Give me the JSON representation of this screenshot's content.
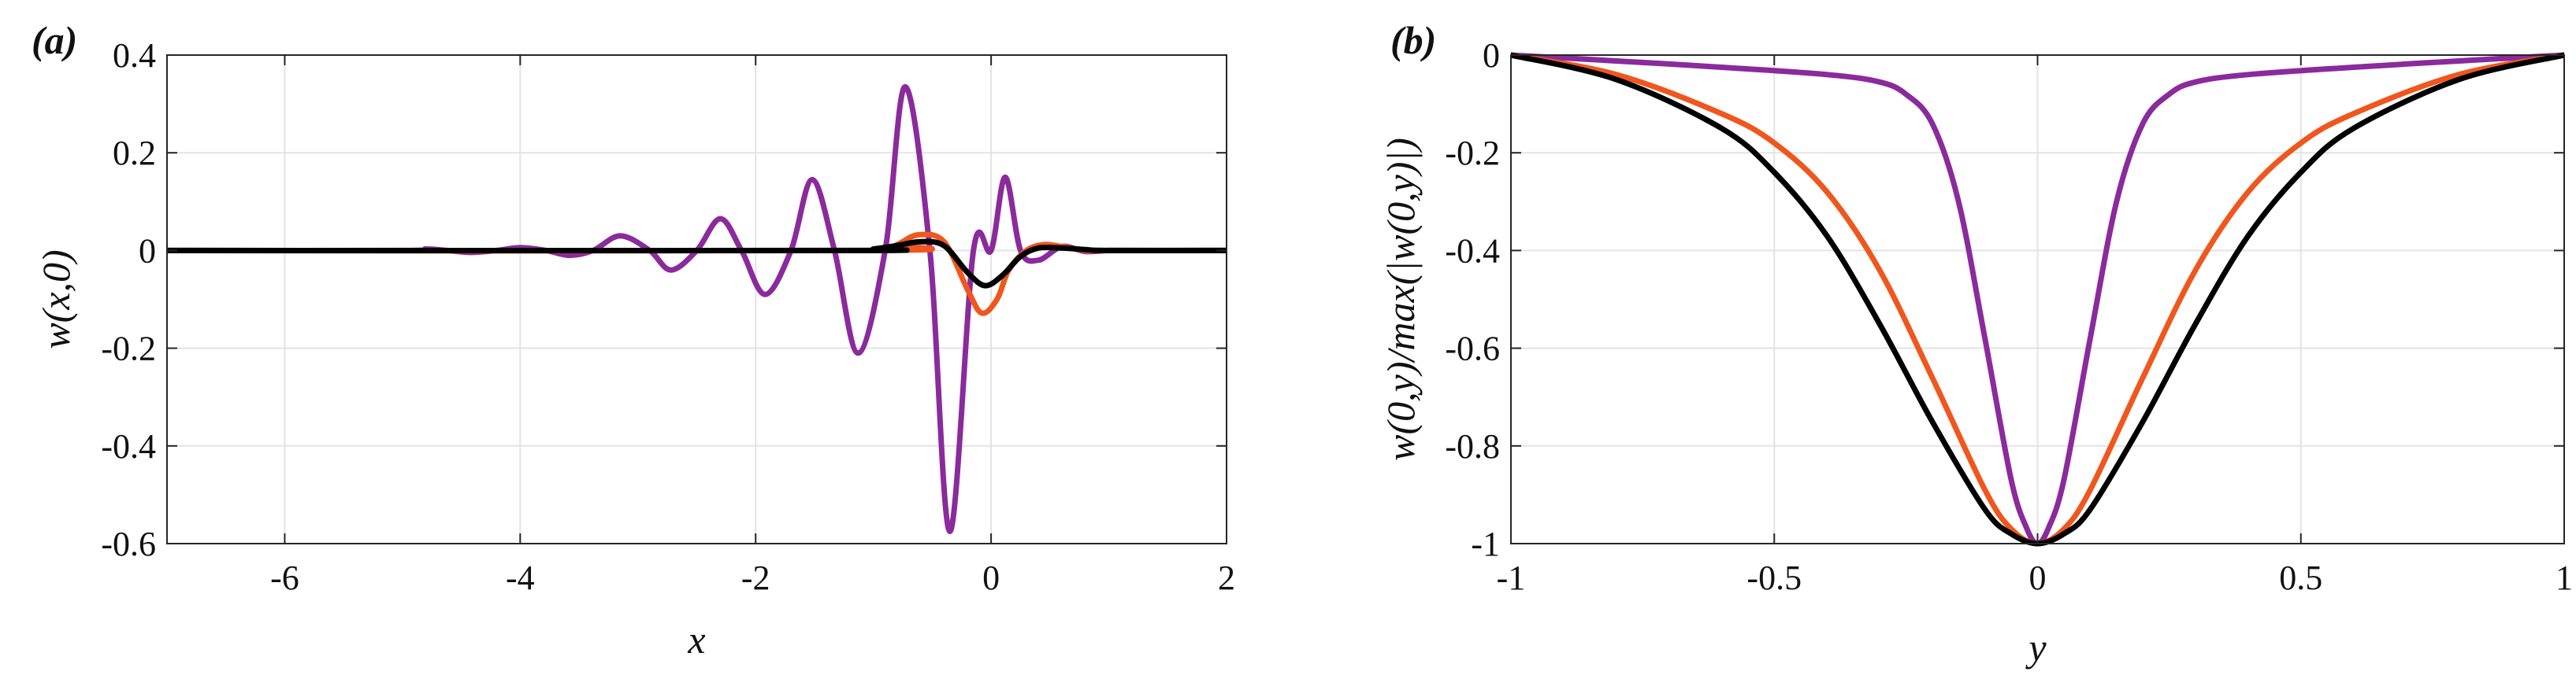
{
  "chart_data": [
    {
      "type": "line",
      "panel_label": "(a)",
      "xlabel": "x",
      "ylabel": "w(x,0)",
      "xlim": [
        -7,
        2
      ],
      "ylim": [
        -0.6,
        0.4
      ],
      "xticks": [
        -6,
        -4,
        -2,
        0,
        2
      ],
      "xtick_labels": [
        "-6",
        "-4",
        "-2",
        "0",
        "2"
      ],
      "yticks": [
        -0.6,
        -0.4,
        -0.2,
        0,
        0.2,
        0.4
      ],
      "ytick_labels": [
        "-0.6",
        "-0.4",
        "-0.2",
        "0",
        "0.2",
        "0.4"
      ],
      "grid": true,
      "series": [
        {
          "name": "purple",
          "color": "#8b2a9c",
          "x": [
            -7.0,
            -5.0,
            -4.8,
            -4.62,
            -4.42,
            -4.2,
            -4.0,
            -3.78,
            -3.58,
            -3.38,
            -3.15,
            -2.9,
            -2.72,
            -2.5,
            -2.3,
            -2.12,
            -1.92,
            -1.7,
            -1.52,
            -1.33,
            -1.13,
            -0.9,
            -0.73,
            -0.52,
            -0.35,
            -0.15,
            0.0,
            0.12,
            0.25,
            0.4,
            0.6,
            0.8,
            1.0,
            1.2,
            2.0
          ],
          "y": [
            0.0,
            0.0,
            0.003,
            0.0,
            -0.004,
            0.0,
            0.006,
            0.0,
            -0.01,
            0.0,
            0.03,
            0.0,
            -0.04,
            0.0,
            0.065,
            0.0,
            -0.09,
            0.0,
            0.145,
            0.0,
            -0.21,
            0.0,
            0.335,
            0.0,
            -0.575,
            0.0,
            0.0,
            0.15,
            0.0,
            -0.02,
            0.008,
            -0.002,
            0.0,
            0.0,
            0.0
          ]
        },
        {
          "name": "orange",
          "color": "#f0561d",
          "x": [
            -7.0,
            -1.0,
            -0.8,
            -0.62,
            -0.4,
            -0.2,
            -0.08,
            0.05,
            0.15,
            0.3,
            0.45,
            0.6,
            0.8,
            1.0,
            2.0
          ],
          "y": [
            0.0,
            0.0,
            0.012,
            0.032,
            0.018,
            -0.08,
            -0.128,
            -0.1,
            -0.04,
            0.0,
            0.012,
            0.008,
            0.0,
            0.0,
            0.0
          ]
        },
        {
          "name": "black",
          "color": "#000000",
          "x": [
            -7.0,
            -1.2,
            -1.0,
            -0.8,
            -0.6,
            -0.4,
            -0.2,
            -0.05,
            0.1,
            0.25,
            0.4,
            0.6,
            0.8,
            1.0,
            2.0
          ],
          "y": [
            0.0,
            0.0,
            0.003,
            0.01,
            0.018,
            0.01,
            -0.045,
            -0.072,
            -0.05,
            -0.012,
            0.005,
            0.005,
            0.002,
            0.0,
            0.0
          ]
        }
      ]
    },
    {
      "type": "line",
      "panel_label": "(b)",
      "xlabel": "y",
      "ylabel": "w(0,y)/max(|w(0,y)|)",
      "xlim": [
        -1,
        1
      ],
      "ylim": [
        -1,
        0
      ],
      "xticks": [
        -1,
        -0.5,
        0,
        0.5,
        1
      ],
      "xtick_labels": [
        "-1",
        "-0.5",
        "0",
        "0.5",
        "1"
      ],
      "yticks": [
        -1,
        -0.8,
        -0.6,
        -0.4,
        -0.2,
        0
      ],
      "ytick_labels": [
        "-1",
        "-0.8",
        "-0.6",
        "-0.4",
        "-0.2",
        "0"
      ],
      "grid": true,
      "series": [
        {
          "name": "purple",
          "color": "#8b2a9c",
          "x": [
            -1.0,
            -0.8,
            -0.6,
            -0.4,
            -0.3,
            -0.25,
            -0.2,
            -0.15,
            -0.1,
            -0.05,
            -0.02,
            0.0,
            0.02,
            0.05,
            0.1,
            0.15,
            0.2,
            0.25,
            0.3,
            0.4,
            0.6,
            0.8,
            1.0
          ],
          "y": [
            0.0,
            -0.012,
            -0.025,
            -0.04,
            -0.055,
            -0.08,
            -0.14,
            -0.3,
            -0.58,
            -0.87,
            -0.97,
            -1.0,
            -0.97,
            -0.87,
            -0.58,
            -0.3,
            -0.14,
            -0.08,
            -0.055,
            -0.04,
            -0.025,
            -0.012,
            0.0
          ]
        },
        {
          "name": "orange",
          "color": "#f0561d",
          "x": [
            -1.0,
            -0.8,
            -0.6,
            -0.5,
            -0.4,
            -0.3,
            -0.2,
            -0.1,
            -0.05,
            0.0,
            0.05,
            0.1,
            0.2,
            0.3,
            0.4,
            0.5,
            0.6,
            0.8,
            1.0
          ],
          "y": [
            0.0,
            -0.04,
            -0.12,
            -0.18,
            -0.28,
            -0.44,
            -0.66,
            -0.89,
            -0.97,
            -1.0,
            -0.97,
            -0.89,
            -0.66,
            -0.44,
            -0.28,
            -0.18,
            -0.12,
            -0.04,
            0.0
          ]
        },
        {
          "name": "black",
          "color": "#000000",
          "x": [
            -1.0,
            -0.8,
            -0.6,
            -0.5,
            -0.4,
            -0.3,
            -0.2,
            -0.1,
            -0.05,
            0.0,
            0.05,
            0.1,
            0.2,
            0.3,
            0.4,
            0.5,
            0.6,
            0.8,
            1.0
          ],
          "y": [
            0.0,
            -0.05,
            -0.15,
            -0.24,
            -0.37,
            -0.55,
            -0.75,
            -0.93,
            -0.98,
            -1.0,
            -0.98,
            -0.93,
            -0.75,
            -0.55,
            -0.37,
            -0.24,
            -0.15,
            -0.05,
            0.0
          ]
        }
      ]
    }
  ]
}
